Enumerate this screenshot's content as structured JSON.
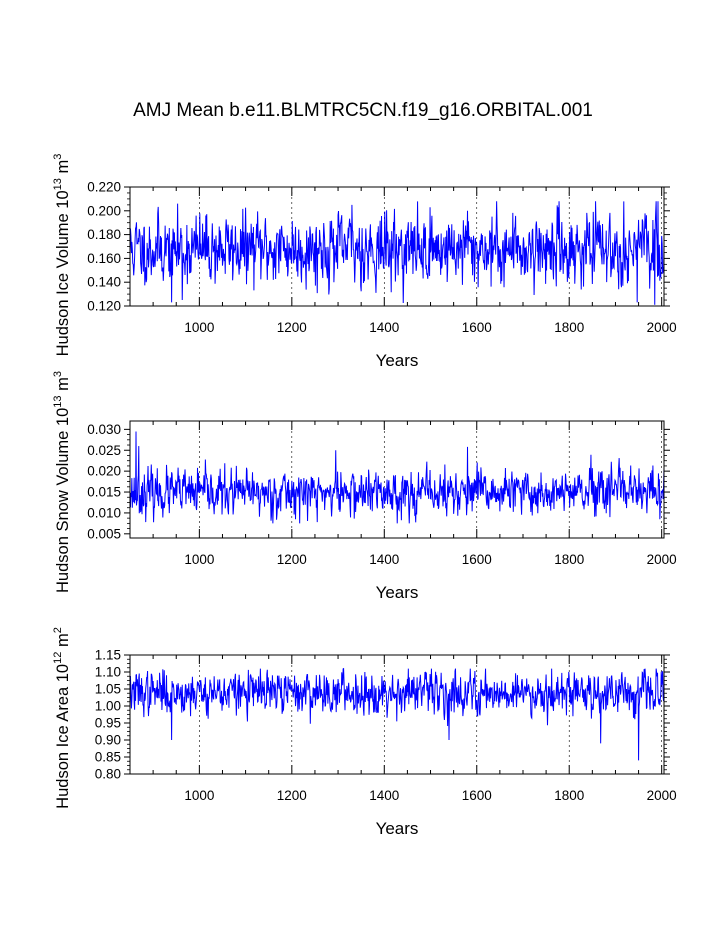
{
  "chart_data": {
    "title": "AMJ Mean b.e11.BLMTRC5CN.f19_g16.ORBITAL.001",
    "x_range": [
      850,
      2005
    ],
    "line_color": "#0000ff",
    "panels": [
      {
        "type": "line",
        "ylabel_main": "Hudson Ice Volume 10",
        "ylabel_sup": "13",
        "ylabel_unit": " m",
        "ylabel_unit_sup": "3",
        "xlabel": "Years",
        "ylim": [
          0.12,
          0.22
        ],
        "yticks": [
          "0.120",
          "0.140",
          "0.160",
          "0.180",
          "0.200",
          "0.220"
        ],
        "xticks": [
          "1000",
          "1200",
          "1400",
          "1600",
          "1800",
          "2000"
        ],
        "series": {
          "name": "Hudson Ice Volume",
          "mean": 0.168,
          "sd": 0.014,
          "min": 0.121,
          "max": 0.208,
          "seed": 11,
          "extremes": [
            [
              940,
              0.123
            ],
            [
              963,
              0.125
            ],
            [
              1330,
              0.205
            ],
            [
              1580,
              0.2
            ],
            [
              1947,
              0.123
            ],
            [
              1985,
              0.121
            ],
            [
              1992,
              0.208
            ]
          ]
        }
      },
      {
        "type": "line",
        "ylabel_main": "Hudson Snow Volume 10",
        "ylabel_sup": "13",
        "ylabel_unit": " m",
        "ylabel_unit_sup": "3",
        "xlabel": "Years",
        "ylim": [
          0.004,
          0.032
        ],
        "yticks": [
          "0.005",
          "0.010",
          "0.015",
          "0.020",
          "0.025",
          "0.030"
        ],
        "xticks": [
          "1000",
          "1200",
          "1400",
          "1600",
          "1800",
          "2000"
        ],
        "series": {
          "name": "Hudson Snow Volume",
          "mean": 0.0148,
          "sd": 0.0026,
          "min": 0.0075,
          "max": 0.0295,
          "seed": 23,
          "extremes": [
            [
              863,
              0.0295
            ],
            [
              869,
              0.026
            ],
            [
              1295,
              0.025
            ],
            [
              1580,
              0.0258
            ],
            [
              1996,
              0.0085
            ],
            [
              1255,
              0.0078
            ]
          ]
        }
      },
      {
        "type": "line",
        "ylabel_main": "Hudson Ice Area 10",
        "ylabel_sup": "12",
        "ylabel_unit": " m",
        "ylabel_unit_sup": "2",
        "xlabel": "Years",
        "ylim": [
          0.8,
          1.15
        ],
        "yticks": [
          "0.80",
          "0.85",
          "0.90",
          "0.95",
          "1.00",
          "1.05",
          "1.10",
          "1.15"
        ],
        "xticks": [
          "1000",
          "1200",
          "1400",
          "1600",
          "1800",
          "2000"
        ],
        "series": {
          "name": "Hudson Ice Area",
          "mean": 1.04,
          "sd": 0.03,
          "min": 0.84,
          "max": 1.11,
          "seed": 37,
          "extremes": [
            [
              940,
              0.9
            ],
            [
              1540,
              0.9
            ],
            [
              1868,
              0.89
            ],
            [
              1950,
              0.84
            ],
            [
              1452,
              1.11
            ],
            [
              1762,
              1.11
            ]
          ]
        }
      }
    ]
  }
}
